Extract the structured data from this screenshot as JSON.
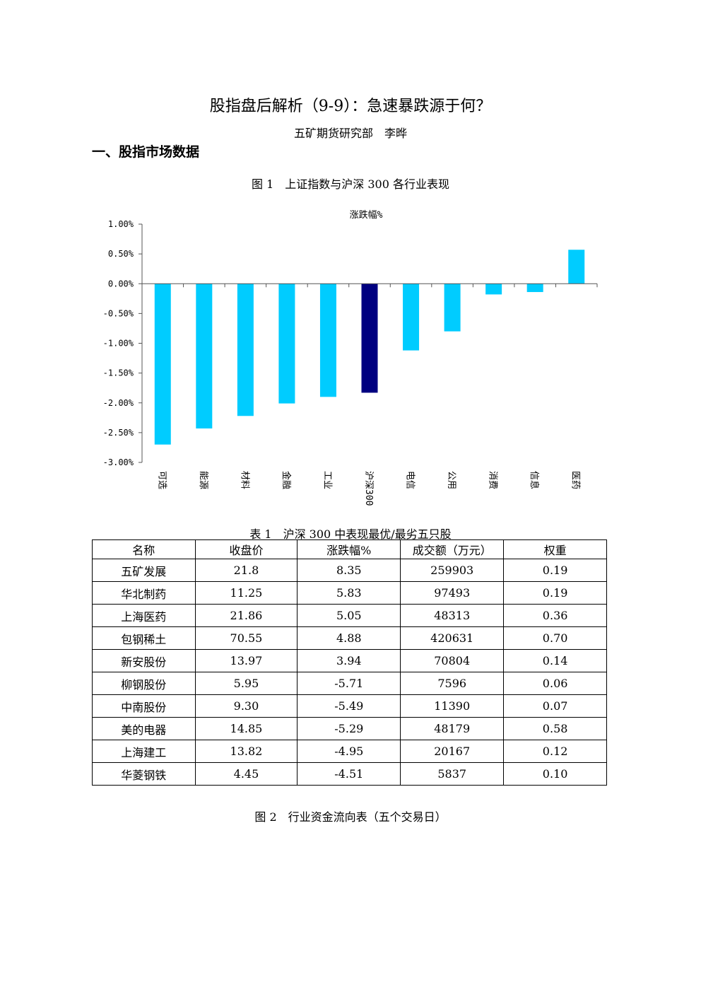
{
  "title": "股指盘后解析（9-9）：急速暴跌源于何？",
  "author": "五矿期货研究部　李晔",
  "section_title": "一、股指市场数据",
  "figure1_caption": "图 1　上证指数与沪深 300 各行业表现",
  "chart_data": {
    "type": "bar",
    "title": "涨跌幅%",
    "categories": [
      "可选",
      "能源",
      "材料",
      "金融",
      "工业",
      "沪深300",
      "电信",
      "公用",
      "消费",
      "信息",
      "医药"
    ],
    "values": [
      -2.7,
      -2.43,
      -2.22,
      -2.01,
      -1.9,
      -1.83,
      -1.12,
      -0.8,
      -0.18,
      -0.14,
      0.57
    ],
    "ylim": [
      -3.0,
      1.0
    ],
    "y_ticks": [
      "1.00%",
      "0.50%",
      "0.00%",
      "-0.50%",
      "-1.00%",
      "-1.50%",
      "-2.00%",
      "-2.50%",
      "-3.00%"
    ],
    "y_tick_values": [
      1.0,
      0.5,
      0.0,
      -0.5,
      -1.0,
      -1.5,
      -2.0,
      -2.5,
      -3.0
    ],
    "bar_color": "#00ccff",
    "highlight_color": "#000080",
    "highlight_category": "沪深300",
    "grid": false
  },
  "table": {
    "caption": "表 1　沪深 300 中表现最优/最劣五只股",
    "headers": [
      "名称",
      "收盘价",
      "涨跌幅%",
      "成交额（万元）",
      "权重"
    ],
    "rows": [
      [
        "五矿发展",
        "21.8",
        "8.35",
        "259903",
        "0.19"
      ],
      [
        "华北制药",
        "11.25",
        "5.83",
        "97493",
        "0.19"
      ],
      [
        "上海医药",
        "21.86",
        "5.05",
        "48313",
        "0.36"
      ],
      [
        "包钢稀土",
        "70.55",
        "4.88",
        "420631",
        "0.70"
      ],
      [
        "新安股份",
        "13.97",
        "3.94",
        "70804",
        "0.14"
      ],
      [
        "柳钢股份",
        "5.95",
        "-5.71",
        "7596",
        "0.06"
      ],
      [
        "中南股份",
        "9.30",
        "-5.49",
        "11390",
        "0.07"
      ],
      [
        "美的电器",
        "14.85",
        "-5.29",
        "48179",
        "0.58"
      ],
      [
        "上海建工",
        "13.82",
        "-4.95",
        "20167",
        "0.12"
      ],
      [
        "华菱钢铁",
        "4.45",
        "-4.51",
        "5837",
        "0.10"
      ]
    ]
  },
  "figure2_caption": "图 2　行业资金流向表（五个交易日）"
}
